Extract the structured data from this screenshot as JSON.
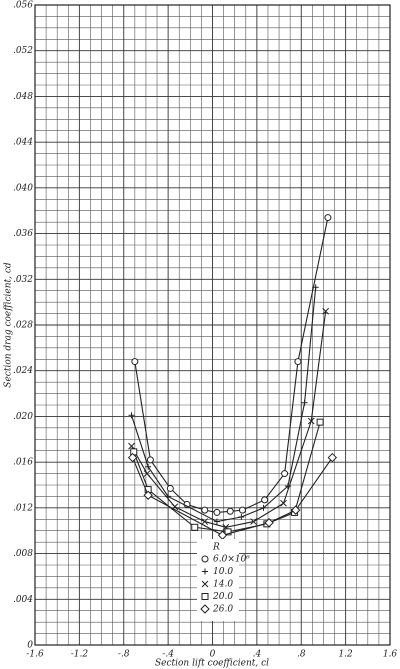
{
  "chart_data": {
    "type": "line",
    "x_label": "Section lift coefficient, cl",
    "y_label": "Section drag coefficient, cd",
    "xlim": [
      -1.6,
      1.6
    ],
    "xticks": [
      -1.6,
      -1.2,
      {
        "value": -0.8,
        "label": "-.8"
      },
      {
        "value": -0.4,
        "label": "-.4"
      },
      0,
      {
        "value": 0.4,
        "label": ".4"
      },
      {
        "value": 0.8,
        "label": ".8"
      },
      1.2,
      1.6
    ],
    "ylim": [
      0,
      0.056
    ],
    "yticks": [
      0,
      {
        "value": 0.004,
        "label": ".004"
      },
      {
        "value": 0.008,
        "label": ".008"
      },
      {
        "value": 0.012,
        "label": ".012"
      },
      {
        "value": 0.016,
        "label": ".016"
      },
      {
        "value": 0.02,
        "label": ".020"
      },
      {
        "value": 0.024,
        "label": ".024"
      },
      {
        "value": 0.028,
        "label": ".028"
      },
      {
        "value": 0.032,
        "label": ".032"
      },
      {
        "value": 0.036,
        "label": ".036"
      },
      {
        "value": 0.04,
        "label": ".040"
      },
      {
        "value": 0.044,
        "label": ".044"
      },
      {
        "value": 0.048,
        "label": ".048"
      },
      {
        "value": 0.052,
        "label": ".052"
      },
      {
        "value": 0.056,
        "label": ".056"
      }
    ],
    "grid": true,
    "legend_title": "R",
    "series": [
      {
        "name": "6.0×10⁶",
        "marker": "circle",
        "color": "#222",
        "x": [
          -0.7,
          -0.56,
          -0.38,
          -0.23,
          -0.07,
          0.04,
          0.16,
          0.27,
          0.47,
          0.65,
          0.77,
          1.04
        ],
        "values": [
          0.0248,
          0.0162,
          0.0137,
          0.0123,
          0.0118,
          0.0116,
          0.0117,
          0.0118,
          0.0127,
          0.015,
          0.0248,
          0.0374
        ]
      },
      {
        "name": "10.0",
        "marker": "plus",
        "color": "#222",
        "x": [
          -0.73,
          -0.58,
          -0.4,
          0.04,
          0.26,
          0.46,
          0.68,
          0.83,
          0.93
        ],
        "values": [
          0.0201,
          0.0156,
          0.013,
          0.0108,
          0.0112,
          0.012,
          0.0139,
          0.0212,
          0.0313
        ]
      },
      {
        "name": "14.0",
        "marker": "cross",
        "color": "#222",
        "x": [
          -0.73,
          -0.59,
          -0.34,
          -0.07,
          0.12,
          0.37,
          0.64,
          0.89,
          1.02
        ],
        "values": [
          0.0174,
          0.015,
          0.0121,
          0.0108,
          0.0103,
          0.0108,
          0.0124,
          0.0196,
          0.0292
        ]
      },
      {
        "name": "20.0",
        "marker": "square",
        "color": "#222",
        "x": [
          -0.71,
          -0.58,
          -0.16,
          0.14,
          0.49,
          0.74,
          0.97
        ],
        "values": [
          0.0169,
          0.0136,
          0.0103,
          0.0099,
          0.0106,
          0.0116,
          0.0195
        ]
      },
      {
        "name": "26.0",
        "marker": "diamond",
        "color": "#222",
        "x": [
          -0.72,
          -0.58,
          0.09,
          0.51,
          0.75,
          1.08
        ],
        "values": [
          0.0164,
          0.0131,
          0.0096,
          0.0107,
          0.0118,
          0.0164
        ]
      }
    ]
  }
}
